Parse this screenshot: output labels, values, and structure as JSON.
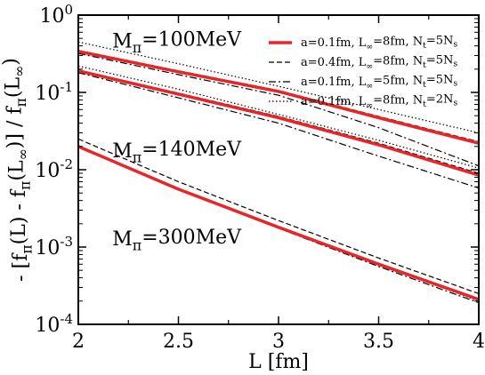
{
  "chart_data": {
    "type": "line",
    "xlabel": "L [fm]",
    "ylabel": "- [f_π(L) - f_π(L_∞)]  /  f_π(L_∞)",
    "xlim": [
      2,
      4
    ],
    "ylim": [
      0.0001,
      1
    ],
    "yscale": "log",
    "grid": false,
    "legend_position": "top-right",
    "x_ticks": [
      2,
      2.5,
      3,
      3.5,
      4
    ],
    "x_tick_labels": [
      "2",
      "2.5",
      "3",
      "3.5",
      "4"
    ],
    "y_ticks": [
      0.0001,
      0.001,
      0.01,
      0.1,
      1
    ],
    "y_tick_labels": [
      {
        "base": "10",
        "exp": "-4"
      },
      {
        "base": "10",
        "exp": "-3"
      },
      {
        "base": "10",
        "exp": "-2"
      },
      {
        "base": "10",
        "exp": "-1"
      },
      {
        "base": "10",
        "exp": "0"
      }
    ],
    "legend": [
      {
        "text": "a=0.1fm, L_∞=8fm, N_t=5N_s",
        "style": "solid",
        "color": "#e8262a"
      },
      {
        "text": "a=0.4fm, L_∞=8fm, N_t=5N_s",
        "style": "dashed",
        "color": "#000000"
      },
      {
        "text": "a=0.1fm, L_∞=5fm, N_t=5N_s",
        "style": "dashdot",
        "color": "#000000"
      },
      {
        "text": "a=0.1fm, L_∞=8fm, N_t=2N_s",
        "style": "dotted",
        "color": "#000000"
      }
    ],
    "annotations": [
      {
        "text": "M_π=100MeV",
        "x": 2.17,
        "y": 0.38
      },
      {
        "text": "M_π=140MeV",
        "x": 2.17,
        "y": 0.0145
      },
      {
        "text": "M_π=300MeV",
        "x": 2.17,
        "y": 0.00105
      }
    ],
    "groups": [
      {
        "label": "M_π=100MeV",
        "series": [
          {
            "style": "solid",
            "x": [
              2,
              2.5,
              3,
              3.5,
              4
            ],
            "y": [
              0.34,
              0.185,
              0.103,
              0.047,
              0.022
            ]
          },
          {
            "style": "dashed",
            "x": [
              2,
              2.5,
              3,
              3.5,
              4
            ],
            "y": [
              0.35,
              0.19,
              0.106,
              0.049,
              0.023
            ]
          },
          {
            "style": "dashdot",
            "x": [
              2,
              2.5,
              3,
              3.5,
              4
            ],
            "y": [
              0.32,
              0.17,
              0.092,
              0.035,
              0.0112
            ]
          },
          {
            "style": "dotted",
            "x": [
              2,
              2.5,
              3,
              3.5,
              4
            ],
            "y": [
              0.45,
              0.235,
              0.12,
              0.06,
              0.03
            ]
          }
        ]
      },
      {
        "label": "M_π=140MeV",
        "series": [
          {
            "style": "solid",
            "x": [
              2,
              2.5,
              3,
              3.5,
              4
            ],
            "y": [
              0.19,
              0.095,
              0.047,
              0.021,
              0.0085
            ]
          },
          {
            "style": "dashed",
            "x": [
              2,
              2.5,
              3,
              3.5,
              4
            ],
            "y": [
              0.195,
              0.098,
              0.049,
              0.022,
              0.009
            ]
          },
          {
            "style": "dashdot",
            "x": [
              2,
              2.5,
              3,
              3.5,
              4
            ],
            "y": [
              0.18,
              0.085,
              0.04,
              0.015,
              0.0058
            ]
          },
          {
            "style": "dotted",
            "x": [
              2,
              2.5,
              3,
              3.5,
              4
            ],
            "y": [
              0.22,
              0.11,
              0.052,
              0.024,
              0.0105
            ]
          }
        ]
      },
      {
        "label": "M_π=300MeV",
        "series": [
          {
            "style": "solid",
            "x": [
              2,
              2.5,
              3,
              3.5,
              4
            ],
            "y": [
              0.02,
              0.0056,
              0.0018,
              0.0006,
              0.00021
            ]
          },
          {
            "style": "dashed",
            "x": [
              2,
              2.5,
              3,
              3.5,
              4
            ],
            "y": [
              0.025,
              0.007,
              0.0022,
              0.00072,
              0.00025
            ]
          },
          {
            "style": "dashdot",
            "x": [
              2,
              2.5,
              3,
              3.5,
              4
            ],
            "y": [
              0.0197,
              0.0055,
              0.00175,
              0.00056,
              0.00019
            ]
          },
          {
            "style": "dotted",
            "x": [
              2,
              2.5,
              3,
              3.5,
              4
            ],
            "y": [
              0.0205,
              0.0057,
              0.00182,
              0.0006,
              0.0002
            ]
          }
        ]
      }
    ]
  }
}
